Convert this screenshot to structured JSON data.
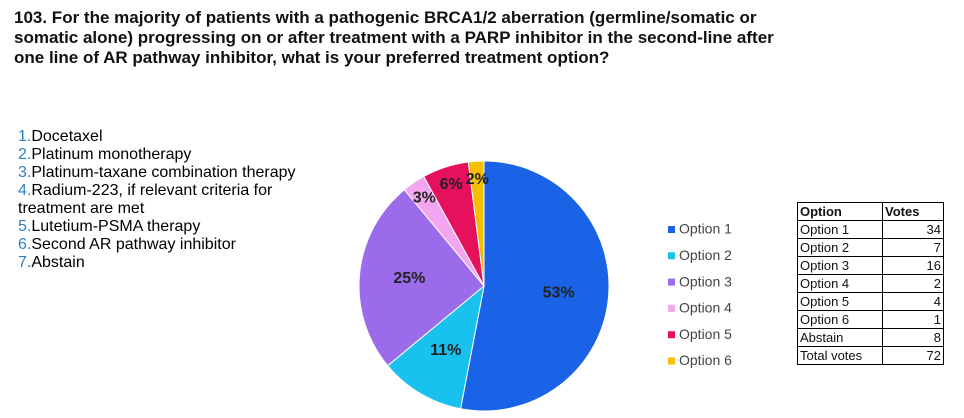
{
  "title_lines": [
    "103. For the majority of patients with a pathogenic BRCA1/2 aberration (germline/somatic or",
    "somatic alone) progressing on or after treatment with a PARP inhibitor in the second-line after",
    "one line of AR pathway inhibitor, what is your preferred treatment option?"
  ],
  "options": [
    {
      "number": "1.",
      "text": "Docetaxel"
    },
    {
      "number": "2.",
      "text": "Platinum monotherapy"
    },
    {
      "number": "3.",
      "text": "Platinum-taxane combination therapy"
    },
    {
      "number": "4.",
      "text": "Radium-223, if relevant criteria for treatment are met"
    },
    {
      "number": "5.",
      "text": "Lutetium-PSMA therapy"
    },
    {
      "number": "6.",
      "text": "Second AR pathway inhibitor"
    },
    {
      "number": "7.",
      "text": "Abstain"
    }
  ],
  "chart_data": {
    "type": "pie",
    "categories": [
      "Option 1",
      "Option 2",
      "Option 3",
      "Option 4",
      "Option 5",
      "Option 6"
    ],
    "values": [
      53,
      11,
      25,
      3,
      6,
      2
    ],
    "value_labels": [
      "53%",
      "11%",
      "25%",
      "3%",
      "6%",
      "2%"
    ],
    "colors": [
      "#1a63e6",
      "#19c1ef",
      "#9b6bec",
      "#f3a6f0",
      "#e5115d",
      "#f4bf00"
    ],
    "legend": "right"
  },
  "table": {
    "header": [
      "Option",
      "Votes"
    ],
    "rows": [
      [
        "Option 1",
        34
      ],
      [
        "Option 2",
        7
      ],
      [
        "Option 3",
        16
      ],
      [
        "Option 4",
        2
      ],
      [
        "Option 5",
        4
      ],
      [
        "Option 6",
        1
      ],
      [
        "Abstain",
        8
      ],
      [
        "Total votes",
        72
      ]
    ]
  }
}
